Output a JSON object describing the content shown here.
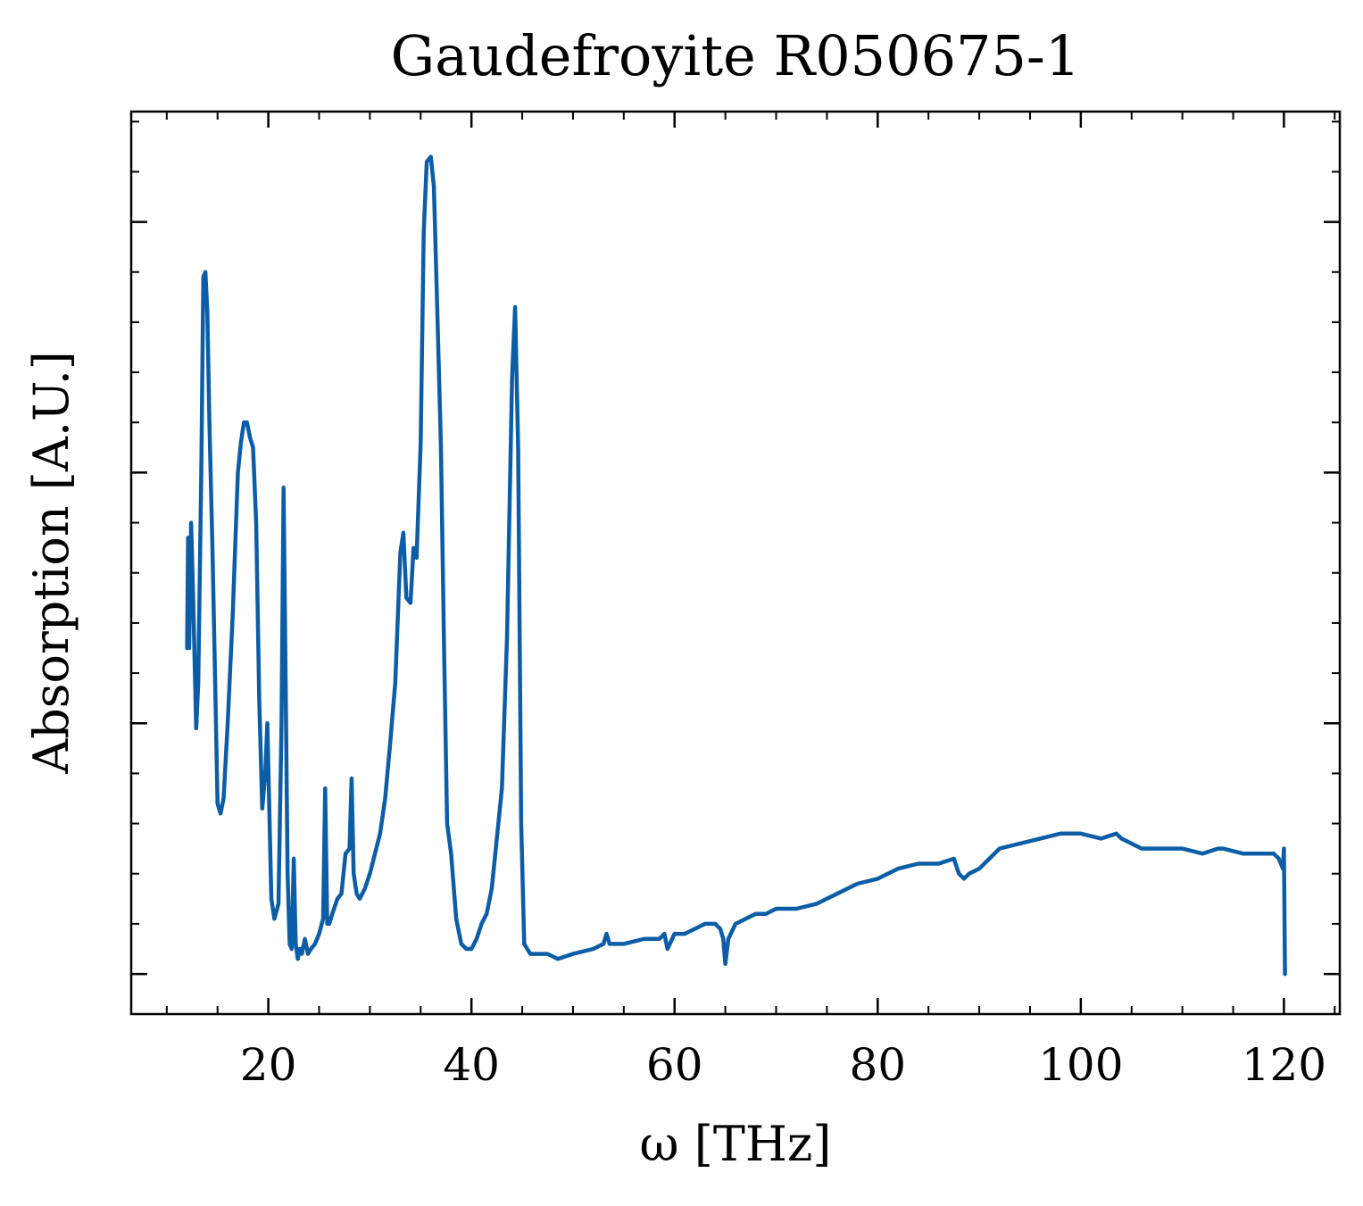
{
  "chart_data": {
    "type": "line",
    "title": "Gaudefroyite R050675-1",
    "xlabel": "ω [THz]",
    "ylabel": "Absorption [A.U.]",
    "xlim": [
      6.5,
      125.5
    ],
    "ylim": [
      -0.08,
      1.72
    ],
    "xticks": [
      20,
      40,
      60,
      80,
      100,
      120
    ],
    "xtick_labels": [
      "20",
      "40",
      "60",
      "80",
      "100",
      "120"
    ],
    "yticks": [
      0.0,
      0.5,
      1.0,
      1.5
    ],
    "ytick_labels_shown": false,
    "grid": false,
    "legend": "none",
    "series": [
      {
        "color": "#0c5da5",
        "x": [
          12.0,
          12.1,
          12.2,
          12.4,
          12.6,
          12.9,
          13.1,
          13.4,
          13.6,
          13.8,
          14.0,
          14.2,
          14.5,
          14.8,
          15.0,
          15.3,
          15.6,
          16.0,
          16.5,
          17.0,
          17.3,
          17.6,
          17.9,
          18.2,
          18.5,
          18.8,
          19.1,
          19.4,
          19.7,
          19.9,
          20.1,
          20.3,
          20.6,
          21.0,
          21.3,
          21.5,
          21.7,
          21.9,
          22.1,
          22.3,
          22.5,
          22.7,
          22.9,
          23.1,
          23.3,
          23.6,
          23.9,
          24.2,
          24.6,
          25.0,
          25.4,
          25.6,
          25.8,
          26.0,
          26.3,
          26.8,
          27.2,
          27.6,
          28.0,
          28.2,
          28.4,
          28.7,
          29.0,
          29.5,
          30.0,
          30.5,
          31.0,
          31.5,
          32.0,
          32.5,
          33.0,
          33.3,
          33.6,
          34.0,
          34.3,
          34.6,
          35.0,
          35.3,
          35.6,
          36.0,
          36.3,
          36.6,
          37.0,
          37.3,
          37.6,
          38.0,
          38.5,
          39.0,
          39.5,
          40.0,
          40.5,
          41.0,
          41.5,
          42.0,
          42.5,
          43.0,
          43.5,
          44.0,
          44.3,
          44.6,
          44.9,
          45.2,
          45.5,
          45.8,
          46.2,
          46.8,
          47.5,
          48.5,
          50.0,
          52.0,
          53.0,
          53.3,
          53.6,
          55.0,
          57.0,
          58.5,
          59.0,
          59.3,
          60.0,
          61.0,
          62.0,
          63.0,
          63.5,
          64.0,
          64.5,
          64.8,
          65.0,
          65.3,
          66.0,
          67.0,
          68.0,
          69.0,
          70.0,
          72.0,
          74.0,
          76.0,
          78.0,
          80.0,
          82.0,
          84.0,
          86.0,
          87.5,
          88.0,
          88.5,
          89.0,
          90.0,
          92.0,
          94.0,
          96.0,
          98.0,
          100.0,
          102.0,
          103.5,
          104.0,
          106.0,
          108.0,
          110.0,
          112.0,
          113.5,
          114.0,
          116.0,
          118.0,
          119.0,
          119.5,
          119.9,
          120.0,
          120.1
        ],
        "y": [
          0.65,
          0.87,
          0.65,
          0.9,
          0.75,
          0.49,
          0.58,
          1.0,
          1.39,
          1.4,
          1.32,
          1.1,
          0.85,
          0.55,
          0.34,
          0.32,
          0.35,
          0.5,
          0.72,
          1.0,
          1.06,
          1.1,
          1.1,
          1.07,
          1.05,
          0.9,
          0.55,
          0.33,
          0.4,
          0.5,
          0.33,
          0.15,
          0.11,
          0.14,
          0.5,
          0.97,
          0.6,
          0.2,
          0.06,
          0.05,
          0.23,
          0.06,
          0.03,
          0.05,
          0.04,
          0.07,
          0.04,
          0.05,
          0.06,
          0.08,
          0.11,
          0.37,
          0.1,
          0.1,
          0.12,
          0.15,
          0.16,
          0.24,
          0.25,
          0.39,
          0.2,
          0.16,
          0.15,
          0.17,
          0.2,
          0.24,
          0.28,
          0.35,
          0.46,
          0.58,
          0.84,
          0.88,
          0.75,
          0.74,
          0.85,
          0.83,
          1.06,
          1.48,
          1.62,
          1.63,
          1.57,
          1.35,
          1.05,
          0.66,
          0.3,
          0.24,
          0.11,
          0.06,
          0.05,
          0.05,
          0.07,
          0.1,
          0.12,
          0.17,
          0.27,
          0.37,
          0.67,
          1.19,
          1.33,
          1.05,
          0.3,
          0.06,
          0.05,
          0.04,
          0.04,
          0.04,
          0.04,
          0.03,
          0.04,
          0.05,
          0.06,
          0.08,
          0.06,
          0.06,
          0.07,
          0.07,
          0.08,
          0.05,
          0.08,
          0.08,
          0.09,
          0.1,
          0.1,
          0.1,
          0.09,
          0.07,
          0.02,
          0.07,
          0.1,
          0.11,
          0.12,
          0.12,
          0.13,
          0.13,
          0.14,
          0.16,
          0.18,
          0.19,
          0.21,
          0.22,
          0.22,
          0.23,
          0.2,
          0.19,
          0.2,
          0.21,
          0.25,
          0.26,
          0.27,
          0.28,
          0.28,
          0.27,
          0.28,
          0.27,
          0.25,
          0.25,
          0.25,
          0.24,
          0.25,
          0.25,
          0.24,
          0.24,
          0.24,
          0.23,
          0.21,
          0.25,
          0.0
        ]
      }
    ]
  }
}
